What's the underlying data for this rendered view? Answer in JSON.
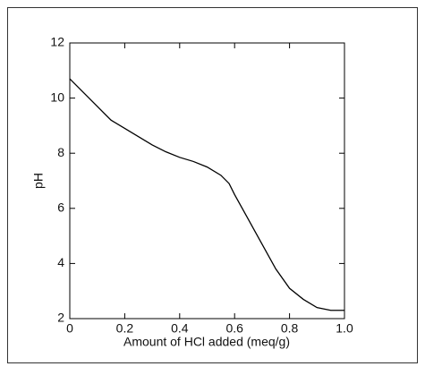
{
  "chart_data": {
    "type": "line",
    "x_label": "Amount of HCl added (meq/g)",
    "y_label": "pH",
    "x": [
      0,
      0.05,
      0.1,
      0.15,
      0.2,
      0.25,
      0.3,
      0.35,
      0.4,
      0.45,
      0.5,
      0.55,
      0.58,
      0.6,
      0.65,
      0.7,
      0.75,
      0.8,
      0.85,
      0.9,
      0.95,
      1.0
    ],
    "series": [
      {
        "color": "#000000",
        "values": [
          10.7,
          10.2,
          9.7,
          9.2,
          8.9,
          8.6,
          8.3,
          8.05,
          7.85,
          7.7,
          7.5,
          7.2,
          6.9,
          6.5,
          5.6,
          4.7,
          3.8,
          3.1,
          2.7,
          2.4,
          2.3,
          2.3
        ]
      }
    ],
    "xlim": [
      0,
      1
    ],
    "ylim": [
      2,
      12
    ],
    "xticks": [
      0,
      0.2,
      0.4,
      0.6,
      0.8,
      {
        "value": 1,
        "label": "1.0"
      }
    ],
    "yticks": [
      2,
      4,
      6,
      8,
      10,
      12
    ],
    "grid": false
  }
}
